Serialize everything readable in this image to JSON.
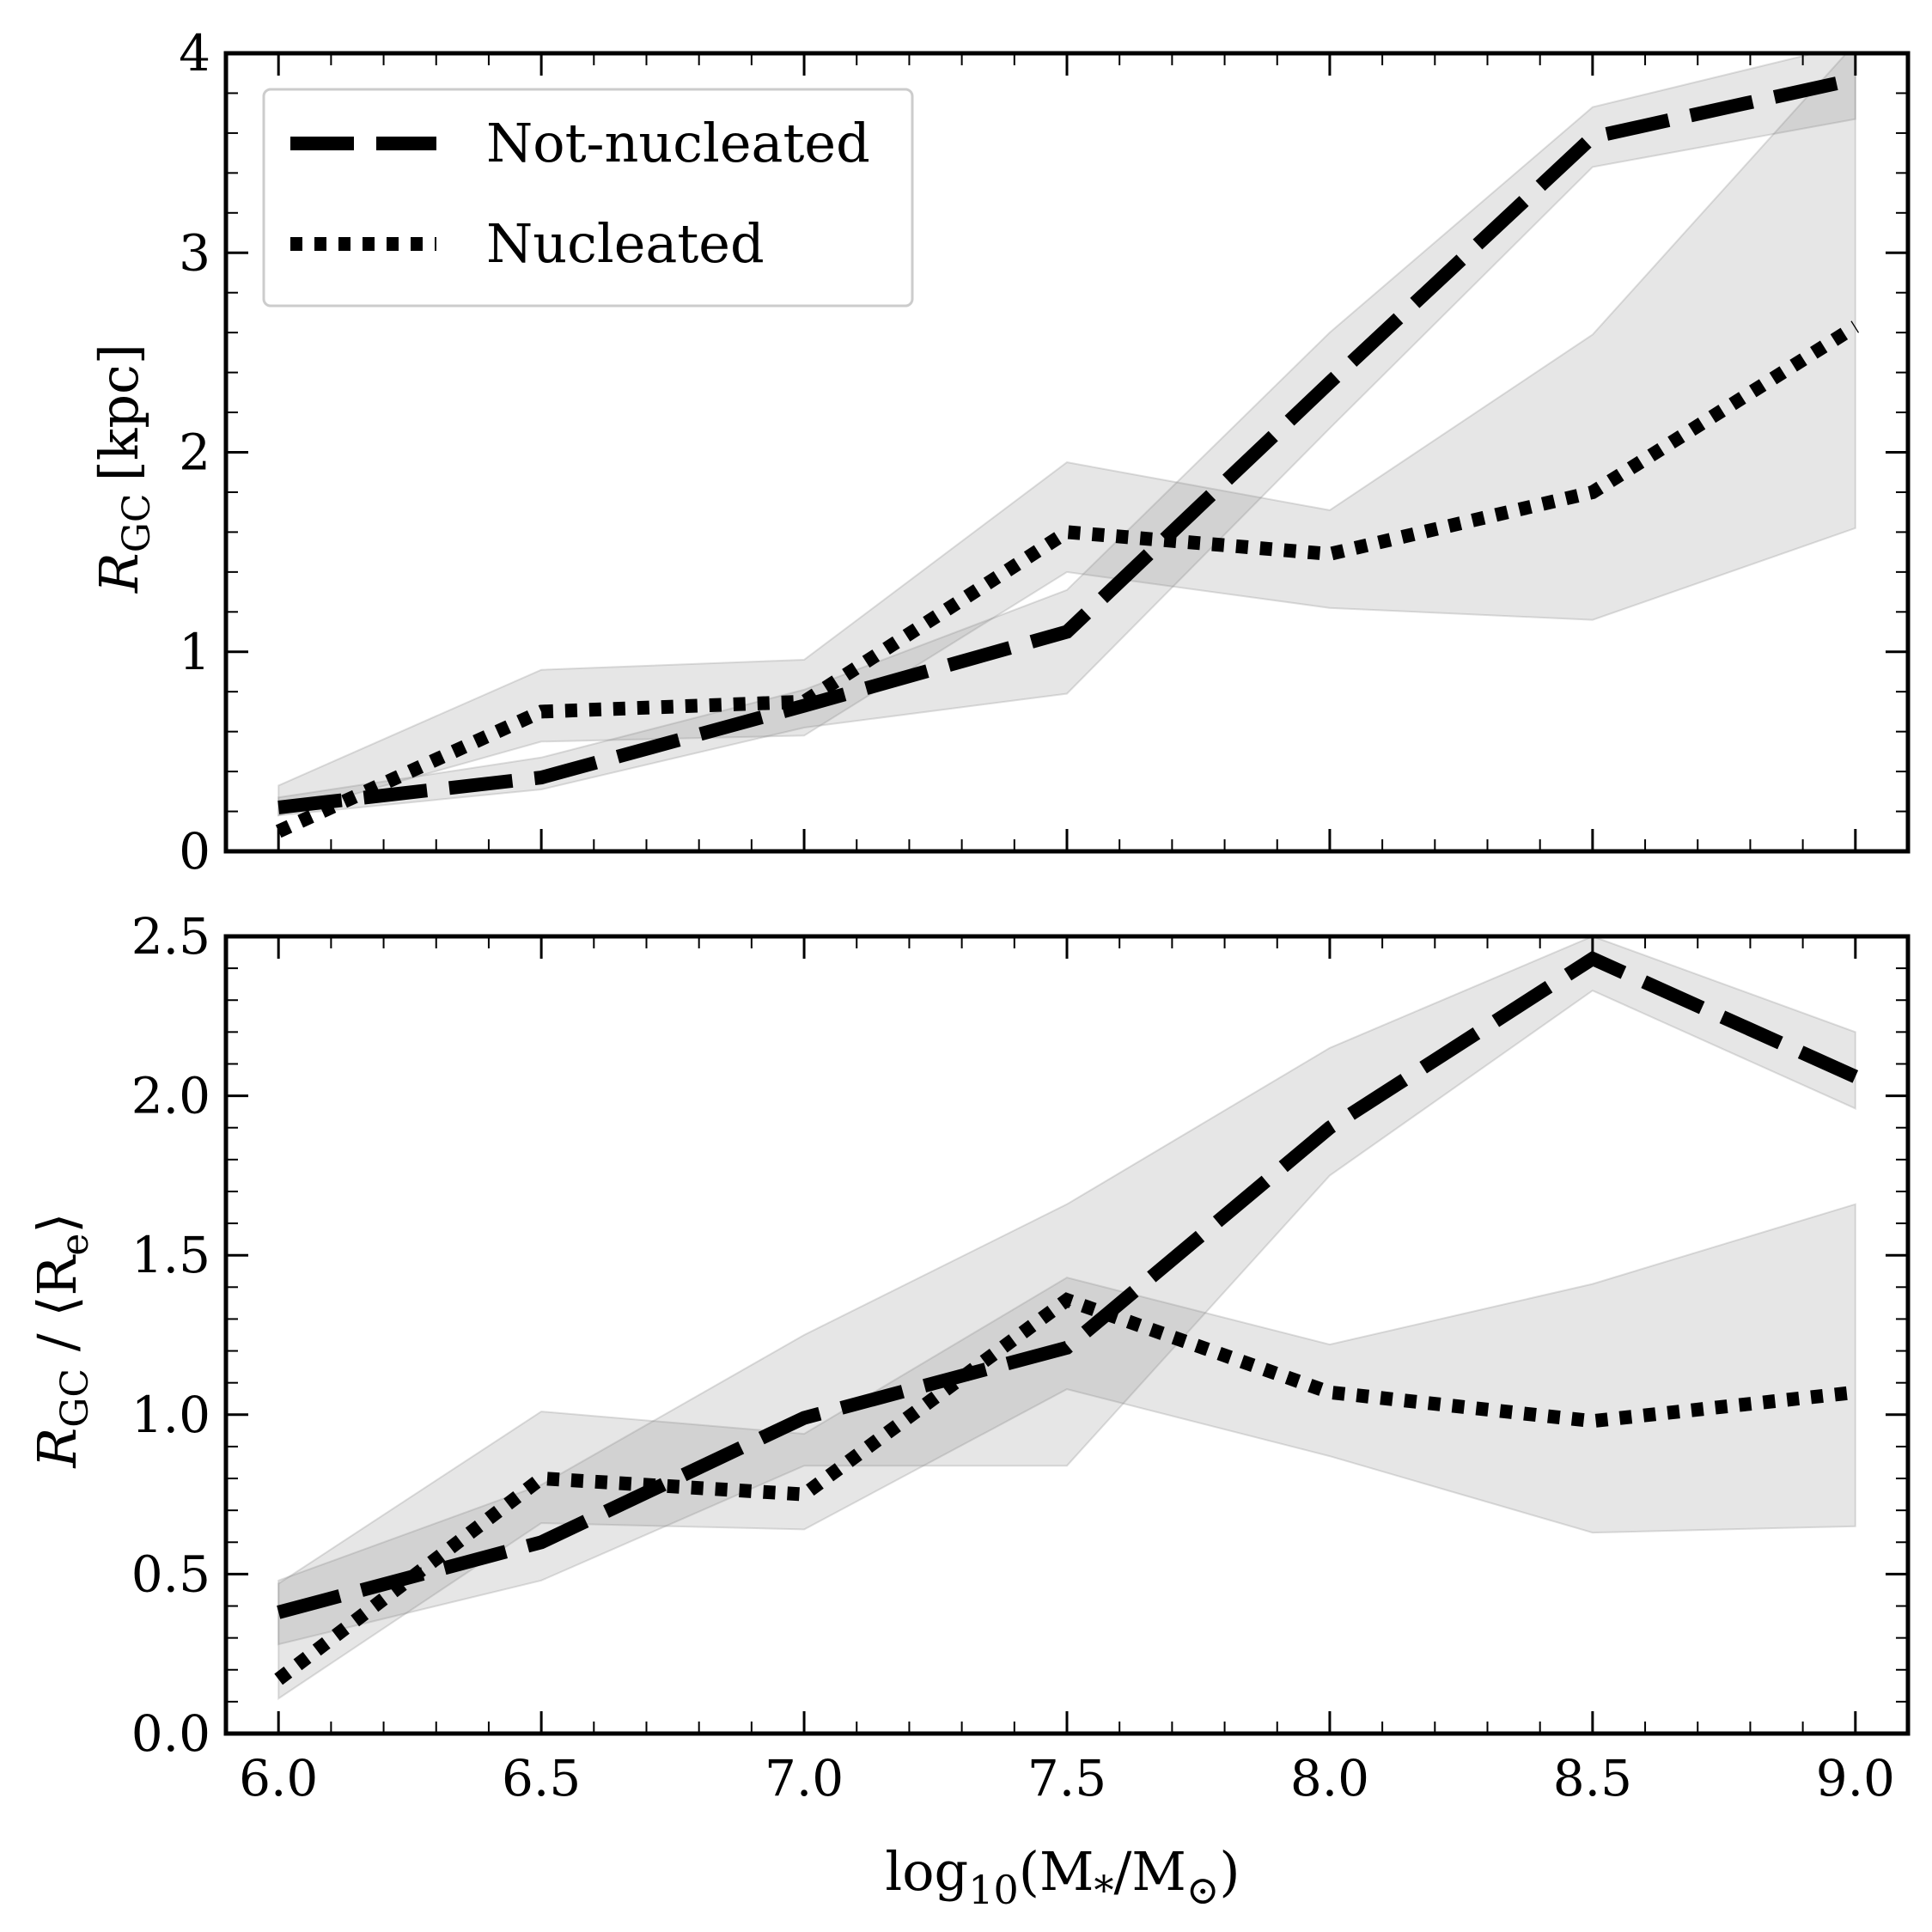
{
  "chart_data": [
    {
      "type": "line",
      "panel": "top",
      "title": "",
      "ylabel": {
        "main": "R",
        "sub": "GC",
        "unit": "[kpc]"
      },
      "x": [
        6.0,
        6.5,
        7.0,
        7.5,
        8.0,
        8.5,
        9.0
      ],
      "xlim": [
        5.9,
        9.1
      ],
      "ylim": [
        0,
        4
      ],
      "yticks": [
        0,
        1,
        2,
        3,
        4
      ],
      "ytick_labels": [
        "0",
        "1",
        "2",
        "3",
        "4"
      ],
      "show_xtick_labels": false,
      "legend_placement": "top-left",
      "series": [
        {
          "name": "Not-nucleated",
          "style": "dashed",
          "values": [
            0.22,
            0.37,
            0.73,
            1.1,
            2.35,
            3.58,
            3.87
          ],
          "lower": [
            0.18,
            0.31,
            0.62,
            0.79,
            2.12,
            3.43,
            3.67
          ],
          "upper": [
            0.27,
            0.47,
            0.81,
            1.31,
            2.6,
            3.73,
            4.05
          ]
        },
        {
          "name": "Nucleated",
          "style": "dotted",
          "values": [
            0.1,
            0.7,
            0.75,
            1.6,
            1.49,
            1.8,
            2.63
          ],
          "lower": [
            0.18,
            0.55,
            0.58,
            1.4,
            1.22,
            1.16,
            1.62
          ],
          "upper": [
            0.33,
            0.91,
            0.96,
            1.95,
            1.71,
            2.59,
            4.05
          ]
        }
      ],
      "legend": [
        "Not-nucleated",
        "Nucleated"
      ]
    },
    {
      "type": "line",
      "panel": "bottom",
      "title": "",
      "ylabel": {
        "main": "R",
        "sub": "GC",
        "rest": " / ⟨R",
        "sub2": "e",
        "close": "⟩"
      },
      "xlabel": {
        "pre": "log",
        "sub": "10",
        "post": "(M",
        "sub2": "*",
        "mid": "/M",
        "sub3": "⊙",
        "end": ")"
      },
      "x": [
        6.0,
        6.5,
        7.0,
        7.5,
        8.0,
        8.5,
        9.0
      ],
      "xlim": [
        5.9,
        9.1
      ],
      "ylim": [
        0,
        2.5
      ],
      "xticks": [
        6.0,
        6.5,
        7.0,
        7.5,
        8.0,
        8.5,
        9.0
      ],
      "xtick_labels": [
        "6.0",
        "6.5",
        "7.0",
        "7.5",
        "8.0",
        "8.5",
        "9.0"
      ],
      "yticks": [
        0,
        0.5,
        1.0,
        1.5,
        2.0,
        2.5
      ],
      "ytick_labels": [
        "0.0",
        "0.5",
        "1.0",
        "1.5",
        "2.0",
        "2.5"
      ],
      "series": [
        {
          "name": "Not-nucleated",
          "style": "dashed",
          "values": [
            0.38,
            0.6,
            0.99,
            1.21,
            1.9,
            2.43,
            2.06
          ],
          "lower": [
            0.28,
            0.48,
            0.84,
            0.84,
            1.75,
            2.33,
            1.96
          ],
          "upper": [
            0.48,
            0.78,
            1.25,
            1.66,
            2.15,
            2.5,
            2.2
          ]
        },
        {
          "name": "Nucleated",
          "style": "dotted",
          "values": [
            0.17,
            0.8,
            0.75,
            1.36,
            1.07,
            0.98,
            1.07
          ],
          "lower": [
            0.11,
            0.66,
            0.64,
            1.08,
            0.87,
            0.63,
            0.65
          ],
          "upper": [
            0.47,
            1.01,
            0.94,
            1.43,
            1.22,
            1.41,
            1.66
          ]
        }
      ]
    }
  ]
}
